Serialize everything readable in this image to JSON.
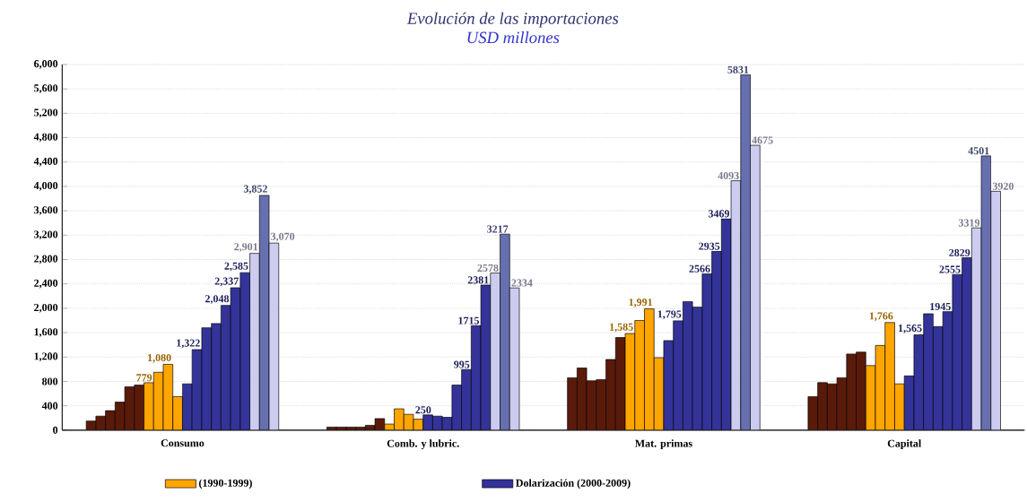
{
  "chart_data": {
    "type": "bar",
    "title": "Evolución de las importaciones",
    "subtitle": "USD millones",
    "categories": [
      "Consumo",
      "Comb. y lubric.",
      "Mat. primas",
      "Capital"
    ],
    "series": [
      {
        "color": "#5a1a0a",
        "values": [
          150,
          50,
          860,
          550
        ]
      },
      {
        "color": "#5a1a0a",
        "values": [
          230,
          50,
          1020,
          780
        ]
      },
      {
        "color": "#5a1a0a",
        "values": [
          320,
          50,
          810,
          760
        ]
      },
      {
        "color": "#5a1a0a",
        "values": [
          460,
          50,
          830,
          860
        ]
      },
      {
        "color": "#5a1a0a",
        "values": [
          710,
          80,
          1160,
          1250
        ]
      },
      {
        "color": "#5a1a0a",
        "values": [
          740,
          190,
          1520,
          1280
        ]
      },
      {
        "name": "(1990-1999)",
        "color": "#ffa500",
        "values": [
          779,
          100,
          1585,
          1060
        ],
        "value_labels": [
          "779",
          null,
          "1,585",
          null
        ]
      },
      {
        "color": "#ffa500",
        "values": [
          950,
          350,
          1800,
          1390
        ]
      },
      {
        "color": "#ffa500",
        "values": [
          1080,
          260,
          1991,
          1766
        ],
        "value_labels": [
          "1,080",
          null,
          "1,991",
          "1,766"
        ]
      },
      {
        "color": "#ffa500",
        "values": [
          550,
          180,
          1190,
          760
        ]
      },
      {
        "name": "Dolarización (2000-2009)",
        "color": "#333399",
        "values": [
          760,
          250,
          1470,
          890
        ],
        "value_labels": [
          null,
          "250",
          null,
          null
        ]
      },
      {
        "color": "#333399",
        "values": [
          1322,
          230,
          1795,
          1565
        ],
        "value_labels": [
          "1,322",
          null,
          "1,795",
          "1,565"
        ]
      },
      {
        "color": "#333399",
        "values": [
          1680,
          210,
          2110,
          1910
        ]
      },
      {
        "color": "#333399",
        "values": [
          1750,
          740,
          2020,
          1700
        ]
      },
      {
        "color": "#333399",
        "values": [
          2048,
          995,
          2566,
          1945
        ],
        "value_labels": [
          "2,048",
          "995",
          "2566",
          "1945"
        ]
      },
      {
        "color": "#333399",
        "values": [
          2337,
          1715,
          2935,
          2555
        ],
        "value_labels": [
          "2,337",
          "1715",
          "2935",
          "2555"
        ]
      },
      {
        "color": "#333399",
        "values": [
          2585,
          2381,
          3469,
          2829
        ],
        "value_labels": [
          "2,585",
          "2381",
          "3469",
          "2829"
        ]
      },
      {
        "color": "#ccccf0",
        "values": [
          2901,
          2578,
          4093,
          3319
        ],
        "value_labels": [
          "2,901",
          "2578",
          "4093",
          "3319"
        ]
      },
      {
        "color": "#6670b0",
        "values": [
          3852,
          3217,
          5831,
          4501
        ],
        "value_labels": [
          "3,852",
          "3217",
          "5831",
          "4501"
        ]
      },
      {
        "color": "#ccccf0",
        "values": [
          3070,
          2334,
          4675,
          3920
        ],
        "value_labels": [
          "3,070",
          "2334",
          "4675",
          "3920"
        ]
      }
    ],
    "ylim": [
      0,
      6000
    ],
    "yticks": [
      0,
      400,
      800,
      {
        "value": 1200,
        "label": "1,200"
      },
      {
        "value": 1600,
        "label": "1,600"
      },
      {
        "value": 2000,
        "label": "2,000"
      },
      {
        "value": 2400,
        "label": "2,400"
      },
      {
        "value": 2800,
        "label": "2,800"
      },
      {
        "value": 3200,
        "label": "3,200"
      },
      {
        "value": 3600,
        "label": "3,600"
      },
      {
        "value": 4000,
        "label": "4,000"
      },
      {
        "value": 4400,
        "label": "4,400"
      },
      {
        "value": 4800,
        "label": "4,800"
      },
      {
        "value": 5200,
        "label": "5,200"
      },
      {
        "value": 5600,
        "label": "5,600"
      },
      {
        "value": 6000,
        "label": "6,000"
      }
    ],
    "grid": "y",
    "legend": "bottom"
  }
}
